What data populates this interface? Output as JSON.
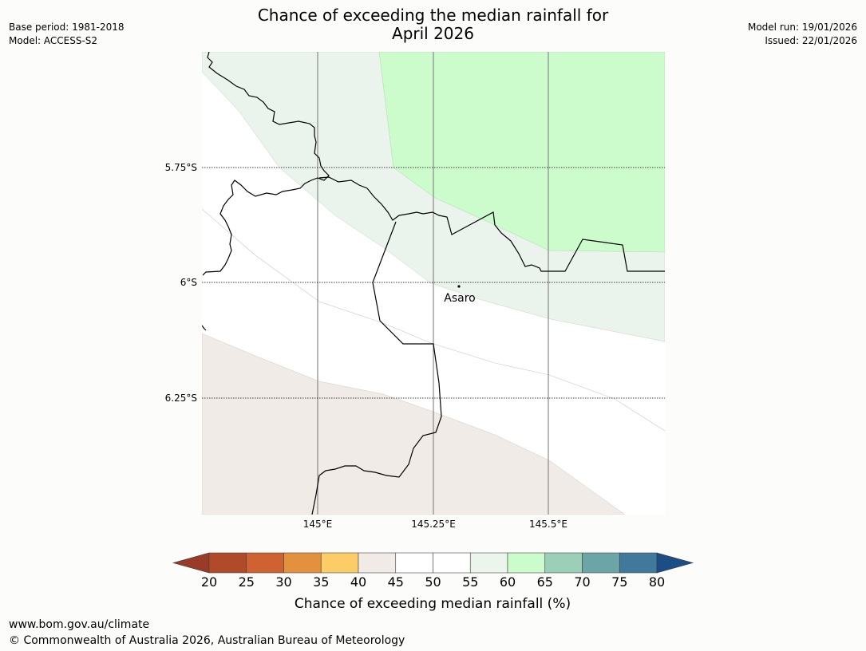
{
  "title": {
    "line1": "Chance of exceeding the median rainfall for",
    "line2": "April 2026"
  },
  "meta_left": {
    "base_period": "Base period: 1981-2018",
    "model": "Model: ACCESS-S2"
  },
  "meta_right": {
    "model_run": "Model run: 19/01/2026",
    "issued": "Issued: 22/01/2026"
  },
  "map": {
    "lat_labels": [
      "5.75°S",
      "6°S",
      "6.25°S"
    ],
    "lon_labels": [
      "145°E",
      "145.25°E",
      "145.5°E"
    ],
    "place": {
      "name": "Asaro"
    }
  },
  "colorbar": {
    "label": "Chance of exceeding median rainfall (%)",
    "ticks": [
      "20",
      "25",
      "30",
      "35",
      "40",
      "45",
      "50",
      "55",
      "60",
      "65",
      "70",
      "75",
      "80"
    ],
    "under_color": "#9a3a28",
    "over_color": "#1b4e85",
    "bin_colors": [
      "#b14a29",
      "#cf6230",
      "#e2913f",
      "#fccc66",
      "#f0ebe6",
      "#ffffff",
      "#ffffff",
      "#ebf5ec",
      "#ccfccc",
      "#9bcfb8",
      "#6ca5a6",
      "#3f7a9c"
    ]
  },
  "footer": {
    "url": "www.bom.gov.au/climate",
    "copyright": "© Commonwealth of Australia 2026, Australian Bureau of Meteorology"
  }
}
